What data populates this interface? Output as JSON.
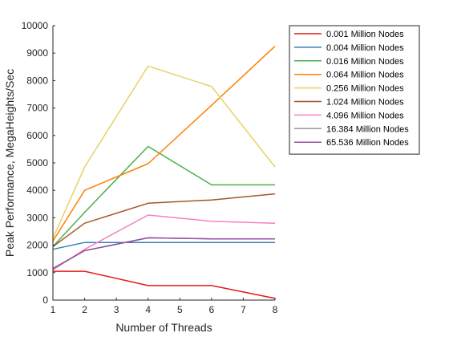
{
  "chart_data": {
    "type": "line",
    "xlabel": "Number of Threads",
    "ylabel": "Peak Performance, MegaHeights/Sec",
    "xlim": [
      1,
      8
    ],
    "ylim": [
      0,
      10000
    ],
    "xticks": [
      1,
      2,
      3,
      4,
      5,
      6,
      7,
      8
    ],
    "yticks": [
      0,
      1000,
      2000,
      3000,
      4000,
      5000,
      6000,
      7000,
      8000,
      9000,
      10000
    ],
    "grid": false,
    "legend_position": "top-right outside",
    "x": [
      1,
      2,
      4,
      6,
      8
    ],
    "series": [
      {
        "name": "0.001 Million Nodes",
        "color": "#e41a1c",
        "values": [
          1050,
          1050,
          530,
          530,
          60
        ]
      },
      {
        "name": "0.004 Million Nodes",
        "color": "#377eb8",
        "values": [
          1850,
          2100,
          2100,
          2100,
          2100
        ]
      },
      {
        "name": "0.016 Million Nodes",
        "color": "#4daf4a",
        "values": [
          1950,
          3200,
          5600,
          4200,
          4200
        ]
      },
      {
        "name": "0.064 Million Nodes",
        "color": "#ff7f00",
        "values": [
          2150,
          4000,
          4970,
          7100,
          9250
        ]
      },
      {
        "name": "0.256 Million Nodes",
        "color": "#e8d167",
        "values": [
          2250,
          4850,
          8530,
          7780,
          4850
        ]
      },
      {
        "name": "1.024 Million Nodes",
        "color": "#a65628",
        "values": [
          1950,
          2800,
          3530,
          3650,
          3870
        ]
      },
      {
        "name": "4.096 Million Nodes",
        "color": "#f781bf",
        "values": [
          1100,
          1850,
          3100,
          2870,
          2800
        ]
      },
      {
        "name": "16.384 Million Nodes",
        "color": "#999999",
        "values": [
          1150,
          1800,
          2270,
          2230,
          2230
        ]
      },
      {
        "name": "65.536 Million Nodes",
        "color": "#984ea3",
        "values": [
          1150,
          1800,
          2270,
          2230,
          2230
        ]
      }
    ]
  }
}
